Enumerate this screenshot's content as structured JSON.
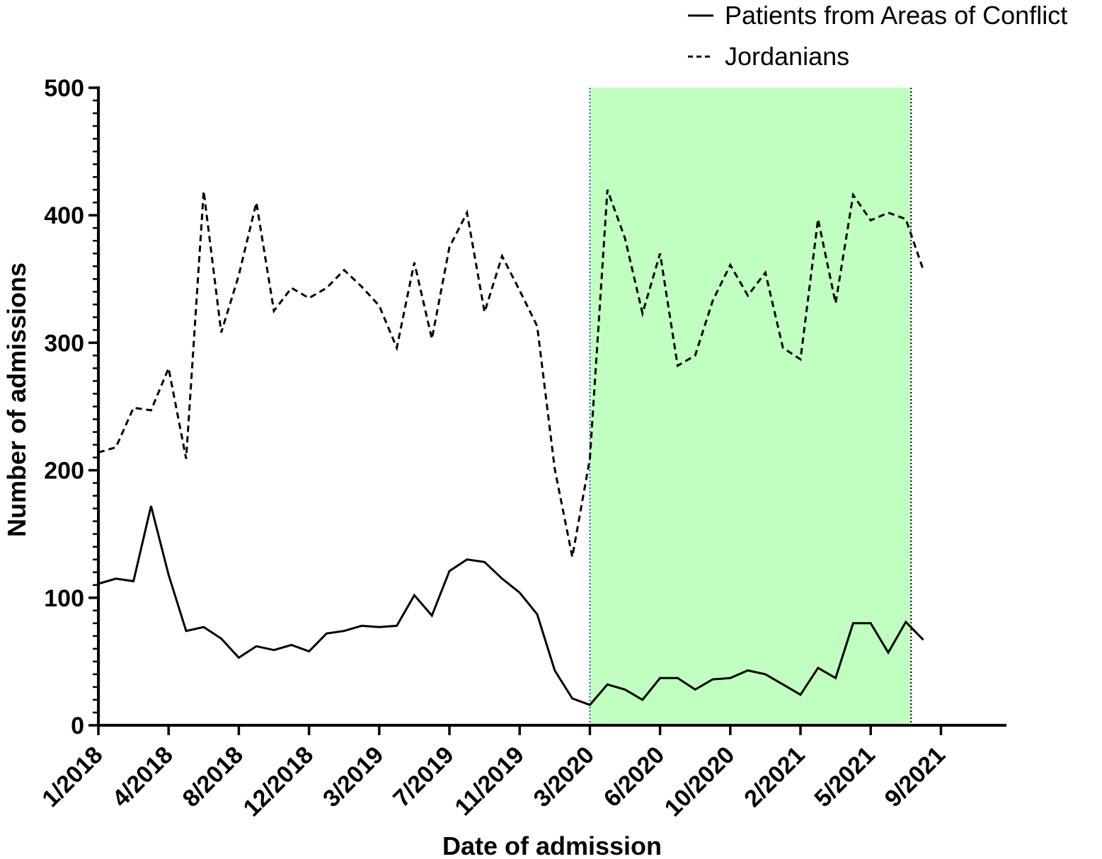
{
  "chart_data": {
    "type": "line",
    "title": "",
    "xlabel": "Date of admission",
    "ylabel": "Number of admissions",
    "ylim": [
      0,
      500
    ],
    "y_ticks": [
      0,
      100,
      200,
      300,
      400,
      500
    ],
    "x_start": "1/2018",
    "x_tick_labels": [
      {
        "label": "1/2018",
        "month_index": 0
      },
      {
        "label": "4/2018",
        "month_index": 4
      },
      {
        "label": "8/2018",
        "month_index": 8
      },
      {
        "label": "12/2018",
        "month_index": 12
      },
      {
        "label": "3/2019",
        "month_index": 16
      },
      {
        "label": "7/2019",
        "month_index": 20
      },
      {
        "label": "11/2019",
        "month_index": 24
      },
      {
        "label": "3/2020",
        "month_index": 28
      },
      {
        "label": "6/2020",
        "month_index": 32
      },
      {
        "label": "10/2020",
        "month_index": 36
      },
      {
        "label": "2/2021",
        "month_index": 40
      },
      {
        "label": "5/2021",
        "month_index": 44
      },
      {
        "label": "9/2021",
        "month_index": 48
      }
    ],
    "highlight_range": {
      "start_index": 28,
      "end_index": 46.3,
      "color": "#c1ffc1"
    },
    "legend_position": "top-right",
    "series": [
      {
        "name": "Patients from Areas of Conflict",
        "style": "solid",
        "color": "#000000",
        "values": [
          111,
          115,
          113,
          172,
          118,
          74,
          77,
          68,
          53,
          62,
          59,
          63,
          58,
          72,
          74,
          78,
          77,
          78,
          102,
          86,
          121,
          130,
          128,
          115,
          104,
          87,
          43,
          21,
          16,
          32,
          28,
          20,
          37,
          37,
          28,
          36,
          37,
          43,
          40,
          32,
          24,
          45,
          37,
          80,
          80,
          57,
          81,
          67
        ]
      },
      {
        "name": "Jordanians",
        "style": "dashed",
        "color": "#000000",
        "values": [
          214,
          218,
          249,
          247,
          280,
          209,
          419,
          308,
          353,
          410,
          325,
          343,
          335,
          343,
          357,
          344,
          329,
          296,
          363,
          303,
          375,
          402,
          324,
          368,
          341,
          313,
          201,
          132,
          209,
          420,
          382,
          323,
          370,
          282,
          290,
          333,
          361,
          337,
          355,
          296,
          287,
          397,
          331,
          416,
          396,
          402,
          397,
          357
        ]
      }
    ]
  }
}
